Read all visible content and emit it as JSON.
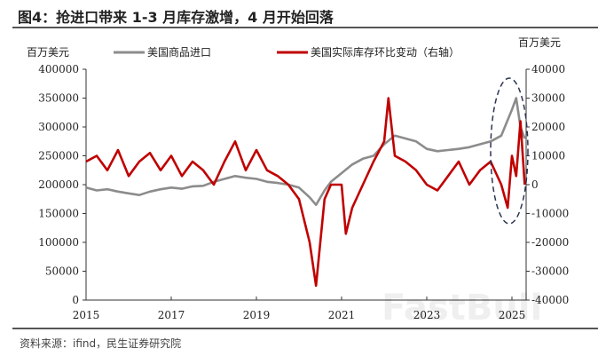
{
  "title": "图4：抢进口带来 1-3 月库存激增，4 月开始回落",
  "source": "资料来源：ifind，民生证券研究院",
  "watermark": "FastBull",
  "chart_data": {
    "type": "line",
    "left_unit": "百万美元",
    "right_unit": "百万美元",
    "xlim": [
      2015,
      2025.4
    ],
    "x_ticks": [
      "2015",
      "2017",
      "2019",
      "2021",
      "2023",
      "2025"
    ],
    "ylim_left": [
      0,
      400000
    ],
    "left_ticks": [
      "0",
      "50000",
      "100000",
      "150000",
      "200000",
      "250000",
      "300000",
      "350000",
      "400000"
    ],
    "ylim_right": [
      -40000,
      40000
    ],
    "right_ticks": [
      "-40000",
      "-30000",
      "-20000",
      "-10000",
      "0",
      "10000",
      "20000",
      "30000",
      "40000"
    ],
    "legend_position": "top",
    "series": [
      {
        "name": "美国商品进口",
        "axis": "left",
        "color": "#8c8c8c",
        "x": [
          2015,
          2015.25,
          2015.5,
          2015.75,
          2016,
          2016.25,
          2016.5,
          2016.75,
          2017,
          2017.25,
          2017.5,
          2017.75,
          2018,
          2018.25,
          2018.5,
          2018.75,
          2019,
          2019.25,
          2019.5,
          2019.75,
          2020,
          2020.25,
          2020.4,
          2020.6,
          2020.75,
          2021,
          2021.25,
          2021.5,
          2021.75,
          2022,
          2022.25,
          2022.5,
          2022.75,
          2023,
          2023.25,
          2023.5,
          2023.75,
          2024,
          2024.25,
          2024.5,
          2024.75,
          2025,
          2025.1,
          2025.2,
          2025.3
        ],
        "values": [
          195000,
          190000,
          192000,
          188000,
          185000,
          182000,
          188000,
          192000,
          195000,
          193000,
          197000,
          198000,
          205000,
          210000,
          215000,
          212000,
          210000,
          205000,
          203000,
          200000,
          195000,
          178000,
          165000,
          190000,
          205000,
          220000,
          235000,
          245000,
          250000,
          270000,
          285000,
          280000,
          275000,
          262000,
          258000,
          260000,
          262000,
          265000,
          270000,
          275000,
          285000,
          330000,
          350000,
          300000,
          280000
        ]
      },
      {
        "name": "美国实际库存环比变动（右轴）",
        "axis": "right",
        "color": "#c00000",
        "x": [
          2015,
          2015.25,
          2015.5,
          2015.75,
          2016,
          2016.25,
          2016.5,
          2016.75,
          2017,
          2017.25,
          2017.5,
          2017.75,
          2018,
          2018.25,
          2018.5,
          2018.75,
          2019,
          2019.25,
          2019.5,
          2019.75,
          2020,
          2020.25,
          2020.4,
          2020.6,
          2020.75,
          2021,
          2021.1,
          2021.25,
          2021.5,
          2021.75,
          2022,
          2022.1,
          2022.25,
          2022.5,
          2022.75,
          2023,
          2023.25,
          2023.5,
          2023.75,
          2024,
          2024.25,
          2024.5,
          2024.75,
          2024.9,
          2025,
          2025.1,
          2025.2,
          2025.3
        ],
        "values": [
          8000,
          10000,
          5000,
          12000,
          3000,
          8000,
          11000,
          5000,
          10000,
          3000,
          8000,
          5000,
          0,
          8000,
          15000,
          5000,
          12000,
          5000,
          3000,
          0,
          -5000,
          -20000,
          -35000,
          -5000,
          0,
          0,
          -17000,
          -8000,
          0,
          8000,
          15000,
          30000,
          10000,
          8000,
          5000,
          0,
          -2000,
          3000,
          8000,
          0,
          5000,
          8000,
          0,
          -8000,
          10000,
          3000,
          22000,
          0
        ]
      }
    ]
  }
}
